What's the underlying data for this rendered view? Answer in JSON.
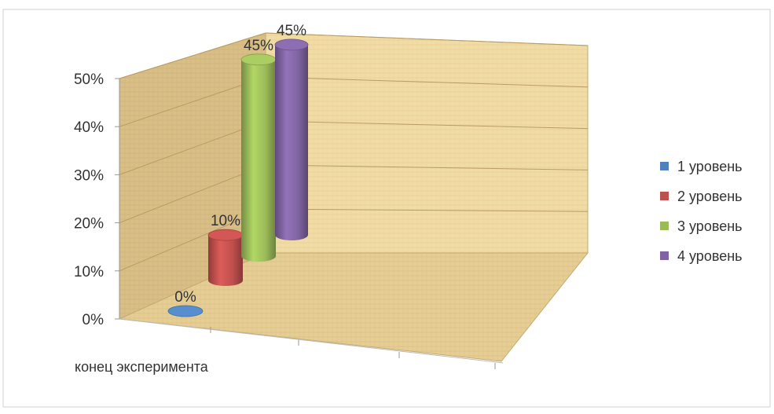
{
  "chart_data": {
    "type": "bar",
    "style": "3d-cylinder",
    "title": "",
    "xlabel": "",
    "ylabel": "",
    "categories": [
      "конец эксперимента"
    ],
    "series": [
      {
        "name": "1 уровень",
        "values": [
          0
        ],
        "label": "0%",
        "color": "#4f81bd"
      },
      {
        "name": "2 уровень",
        "values": [
          10
        ],
        "label": "10%",
        "color": "#c0504d"
      },
      {
        "name": "3 уровень",
        "values": [
          45
        ],
        "label": "45%",
        "color": "#9bbb59"
      },
      {
        "name": "4 уровень",
        "values": [
          45
        ],
        "label": "45%",
        "color": "#8064a2"
      }
    ],
    "ylim": [
      0,
      50
    ],
    "yticks": [
      "0%",
      "10%",
      "20%",
      "30%",
      "40%",
      "50%"
    ],
    "grid": true,
    "legend": "right",
    "wall_color": "#f0d9a0",
    "floor_color": "#e0c68a"
  }
}
